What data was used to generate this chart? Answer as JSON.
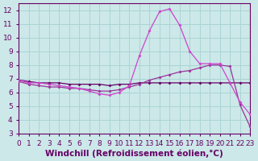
{
  "xlabel": "Windchill (Refroidissement éolien,°C)",
  "bg_color": "#cce8e8",
  "grid_color": "#aad4d4",
  "color_spike": "#cc44cc",
  "color_rising": "#993399",
  "color_flat": "#660066",
  "xlim": [
    0,
    23
  ],
  "ylim": [
    3,
    12.5
  ],
  "yticks": [
    3,
    4,
    5,
    6,
    7,
    8,
    9,
    10,
    11,
    12
  ],
  "xticks": [
    0,
    1,
    2,
    3,
    4,
    5,
    6,
    7,
    8,
    9,
    10,
    11,
    12,
    13,
    14,
    15,
    16,
    17,
    18,
    19,
    20,
    21,
    22,
    23
  ],
  "spike_x": [
    0,
    1,
    2,
    3,
    4,
    5,
    6,
    7,
    8,
    9,
    10,
    11,
    12,
    13,
    14,
    15,
    16,
    17,
    18,
    19,
    20,
    21,
    22,
    23
  ],
  "spike_y": [
    6.9,
    6.7,
    6.7,
    6.6,
    6.5,
    6.4,
    6.3,
    6.1,
    5.9,
    5.8,
    6.0,
    6.5,
    8.7,
    10.5,
    11.9,
    12.1,
    10.9,
    9.0,
    8.1,
    8.1,
    8.1,
    6.7,
    5.3,
    4.4
  ],
  "rising_x": [
    0,
    1,
    2,
    3,
    4,
    5,
    6,
    7,
    8,
    9,
    10,
    11,
    12,
    13,
    14,
    15,
    16,
    17,
    18,
    19,
    20,
    21,
    22,
    23
  ],
  "rising_y": [
    6.8,
    6.6,
    6.5,
    6.4,
    6.4,
    6.3,
    6.3,
    6.2,
    6.1,
    6.1,
    6.2,
    6.4,
    6.6,
    6.9,
    7.1,
    7.3,
    7.5,
    7.6,
    7.8,
    8.0,
    8.0,
    7.9,
    5.1,
    3.5
  ],
  "flat_x": [
    0,
    1,
    2,
    3,
    4,
    5,
    6,
    7,
    8,
    9,
    10,
    11,
    12,
    13,
    14,
    15,
    16,
    17,
    18,
    19,
    20,
    21,
    22,
    23
  ],
  "flat_y": [
    6.9,
    6.8,
    6.7,
    6.7,
    6.7,
    6.6,
    6.6,
    6.6,
    6.6,
    6.5,
    6.6,
    6.6,
    6.7,
    6.7,
    6.7,
    6.7,
    6.7,
    6.7,
    6.7,
    6.7,
    6.7,
    6.7,
    6.7,
    6.7
  ],
  "tick_fontsize": 6.5,
  "xlabel_fontsize": 7.5,
  "axis_color": "#660066"
}
